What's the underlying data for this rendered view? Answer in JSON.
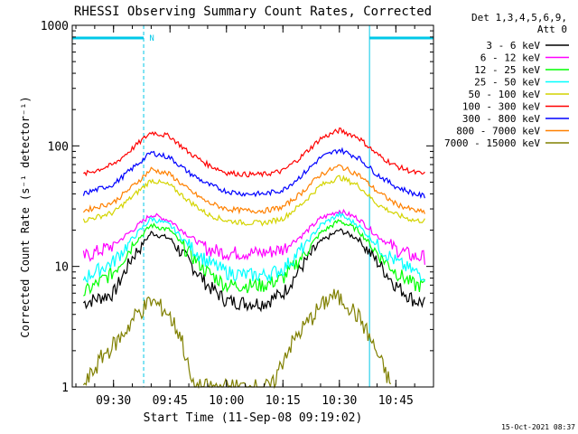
{
  "chart_data": {
    "type": "line",
    "title": "RHESSI Observing Summary Count Rates, Corrected",
    "xlabel": "Start Time (11-Sep-08 09:19:02)",
    "ylabel": "Corrected Count Rate (s⁻¹ detector⁻¹)",
    "y_scale": "log",
    "ylim": [
      1,
      1000
    ],
    "xlim": [
      "09:19:02",
      "10:55:00"
    ],
    "x_ticks": [
      "09:30",
      "09:45",
      "10:00",
      "10:15",
      "10:30",
      "10:45"
    ],
    "y_ticks": [
      "1",
      "10",
      "100",
      "1000"
    ],
    "grid": false,
    "legend_position": "top-right",
    "legend_header": [
      "Det 1,3,4,5,6,9,",
      "Att 0"
    ],
    "timestamp": "15-Oct-2021 08:37",
    "night_marker_label": "N",
    "night_intervals": [
      [
        "09:19:02",
        "09:38:00"
      ],
      [
        "10:38:00",
        "10:55:00"
      ]
    ],
    "vertical_markers": [
      "09:19:02",
      "09:38:00",
      "10:38:00",
      "10:55:00"
    ],
    "series": [
      {
        "name": "3 - 6 keV",
        "color": "#000000",
        "x": [
          "09:22",
          "09:30",
          "09:35",
          "09:40",
          "09:45",
          "09:50",
          "09:55",
          "10:00",
          "10:05",
          "10:10",
          "10:15",
          "10:20",
          "10:25",
          "10:30",
          "10:35",
          "10:40",
          "10:45",
          "10:50",
          "10:53"
        ],
        "y": [
          5.0,
          6,
          12,
          19,
          17,
          11,
          7,
          5.2,
          5,
          5,
          6,
          10,
          16,
          20,
          17,
          11,
          7,
          5.2,
          5
        ]
      },
      {
        "name": "6 - 12 keV",
        "color": "#ff00ff",
        "x": [
          "09:22",
          "09:30",
          "09:35",
          "09:40",
          "09:45",
          "09:50",
          "09:55",
          "10:00",
          "10:05",
          "10:10",
          "10:15",
          "10:20",
          "10:25",
          "10:30",
          "10:35",
          "10:40",
          "10:45",
          "10:50",
          "10:53"
        ],
        "y": [
          12,
          15,
          20,
          27,
          24,
          18,
          14,
          13,
          13,
          13,
          14,
          18,
          25,
          29,
          25,
          18,
          14,
          12,
          12
        ]
      },
      {
        "name": "12 - 25 keV",
        "color": "#00ff00",
        "x": [
          "09:22",
          "09:30",
          "09:35",
          "09:40",
          "09:45",
          "09:50",
          "09:55",
          "10:00",
          "10:05",
          "10:10",
          "10:15",
          "10:20",
          "10:25",
          "10:30",
          "10:35",
          "10:40",
          "10:45",
          "10:50",
          "10:53"
        ],
        "y": [
          6,
          9,
          15,
          22,
          20,
          13,
          9,
          7,
          7,
          7,
          8,
          12,
          19,
          24,
          20,
          13,
          9,
          7,
          7
        ]
      },
      {
        "name": "25 - 50 keV",
        "color": "#00ffff",
        "x": [
          "09:22",
          "09:30",
          "09:35",
          "09:40",
          "09:45",
          "09:50",
          "09:55",
          "10:00",
          "10:05",
          "10:10",
          "10:15",
          "10:20",
          "10:25",
          "10:30",
          "10:35",
          "10:40",
          "10:45",
          "10:50",
          "10:53"
        ],
        "y": [
          8,
          11,
          17,
          25,
          22,
          15,
          11,
          9,
          8.5,
          8.5,
          9.5,
          14,
          22,
          27,
          22,
          15,
          11,
          9,
          8.5
        ]
      },
      {
        "name": "50 - 100 keV",
        "color": "#d4d400",
        "x": [
          "09:22",
          "09:30",
          "09:35",
          "09:40",
          "09:45",
          "09:50",
          "09:55",
          "10:00",
          "10:05",
          "10:10",
          "10:15",
          "10:20",
          "10:25",
          "10:30",
          "10:35",
          "10:40",
          "10:45",
          "10:50",
          "10:53"
        ],
        "y": [
          24,
          28,
          38,
          52,
          47,
          35,
          27,
          24,
          23,
          23,
          25,
          33,
          47,
          55,
          47,
          33,
          27,
          24,
          24
        ]
      },
      {
        "name": "100 - 300 keV",
        "color": "#ff0000",
        "x": [
          "09:22",
          "09:30",
          "09:35",
          "09:40",
          "09:45",
          "09:50",
          "09:55",
          "10:00",
          "10:05",
          "10:10",
          "10:15",
          "10:20",
          "10:25",
          "10:30",
          "10:35",
          "10:40",
          "10:45",
          "10:50",
          "10:53"
        ],
        "y": [
          58,
          70,
          95,
          130,
          120,
          88,
          70,
          60,
          58,
          58,
          62,
          82,
          115,
          135,
          118,
          85,
          68,
          60,
          58
        ]
      },
      {
        "name": "300 - 800 keV",
        "color": "#0000ff",
        "x": [
          "09:22",
          "09:30",
          "09:35",
          "09:40",
          "09:45",
          "09:50",
          "09:55",
          "10:00",
          "10:05",
          "10:10",
          "10:15",
          "10:20",
          "10:25",
          "10:30",
          "10:35",
          "10:40",
          "10:45",
          "10:50",
          "10:53"
        ],
        "y": [
          40,
          48,
          65,
          88,
          80,
          60,
          48,
          42,
          40,
          40,
          43,
          57,
          80,
          93,
          80,
          58,
          46,
          40,
          38
        ]
      },
      {
        "name": "800 - 7000 keV",
        "color": "#ff8000",
        "x": [
          "09:22",
          "09:30",
          "09:35",
          "09:40",
          "09:45",
          "09:50",
          "09:55",
          "10:00",
          "10:05",
          "10:10",
          "10:15",
          "10:20",
          "10:25",
          "10:30",
          "10:35",
          "10:40",
          "10:45",
          "10:50",
          "10:53"
        ],
        "y": [
          29,
          34,
          46,
          64,
          58,
          43,
          34,
          30,
          29,
          29,
          31,
          41,
          58,
          68,
          58,
          42,
          33,
          29,
          28
        ]
      },
      {
        "name": "7000 - 15000 keV",
        "color": "#808000",
        "x": [
          "09:22",
          "09:27",
          "09:32",
          "09:36",
          "09:40",
          "09:44",
          "09:48",
          "09:51",
          "10:12",
          "10:16",
          "10:20",
          "10:24",
          "10:28",
          "10:32",
          "10:36",
          "10:40",
          "10:44"
        ],
        "y": [
          1,
          1.8,
          2.6,
          4.0,
          5.2,
          4.3,
          2.6,
          1.0,
          1.0,
          2.0,
          3.0,
          4.3,
          5.8,
          5.0,
          3.5,
          1.9,
          1.0
        ]
      }
    ]
  }
}
